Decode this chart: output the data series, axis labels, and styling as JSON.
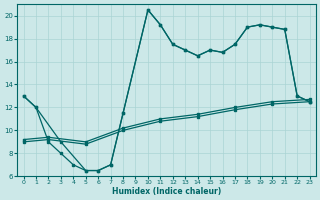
{
  "xlabel": "Humidex (Indice chaleur)",
  "xlim": [
    -0.5,
    23.5
  ],
  "ylim": [
    6,
    21
  ],
  "yticks": [
    6,
    8,
    10,
    12,
    14,
    16,
    18,
    20
  ],
  "xticks": [
    0,
    1,
    2,
    3,
    4,
    5,
    6,
    7,
    8,
    9,
    10,
    11,
    12,
    13,
    14,
    15,
    16,
    17,
    18,
    19,
    20,
    21,
    22,
    23
  ],
  "bg_color": "#cce8e8",
  "grid_color": "#aad4d4",
  "line_color": "#006666",
  "line1_x": [
    0,
    1,
    2,
    3,
    4,
    5,
    6,
    7,
    8,
    10,
    11,
    12,
    13,
    14,
    15,
    16,
    17,
    18,
    19,
    20,
    21,
    22,
    23
  ],
  "line1_y": [
    13,
    12,
    9,
    8,
    7,
    6.5,
    6.5,
    7.0,
    11.5,
    20.5,
    19.2,
    17.5,
    17,
    16.5,
    17,
    16.8,
    17.5,
    19,
    19.2,
    19,
    18.8,
    13,
    12.5
  ],
  "line2_x": [
    0,
    1,
    3,
    5,
    6,
    7,
    8,
    10,
    11,
    12,
    13,
    14,
    15,
    16,
    17,
    18,
    19,
    20,
    21,
    22,
    23
  ],
  "line2_y": [
    13,
    12,
    9,
    6.5,
    6.5,
    7.0,
    11.5,
    20.5,
    19.2,
    17.5,
    17,
    16.5,
    17,
    16.8,
    17.5,
    19,
    19.2,
    19,
    18.8,
    13,
    12.5
  ],
  "line3_x": [
    0,
    2,
    5,
    8,
    11,
    14,
    17,
    20,
    23
  ],
  "line3_y": [
    9.0,
    9.2,
    8.8,
    10.0,
    10.8,
    11.2,
    11.8,
    12.3,
    12.5
  ],
  "line4_x": [
    0,
    2,
    5,
    8,
    11,
    14,
    17,
    20,
    23
  ],
  "line4_y": [
    9.2,
    9.4,
    9.0,
    10.2,
    11.0,
    11.4,
    12.0,
    12.5,
    12.7
  ]
}
